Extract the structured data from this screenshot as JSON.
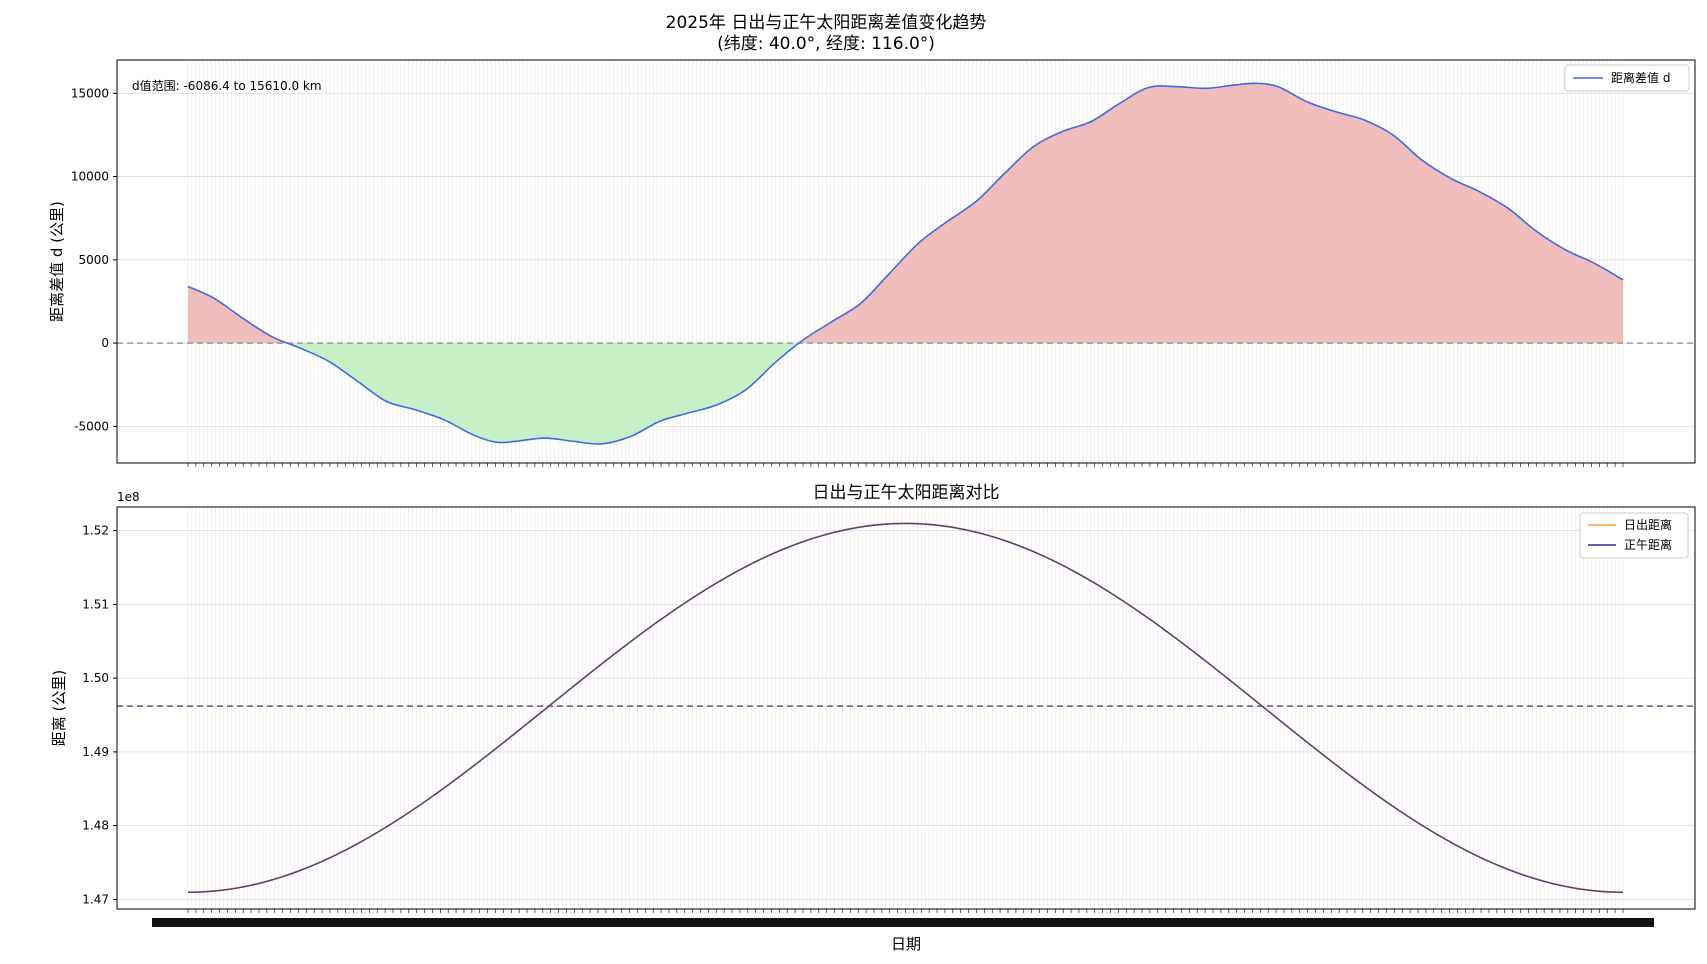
{
  "figure": {
    "title_line1": "2025年 日出与正午太阳距离差值变化趋势",
    "title_line2": "(纬度: 40.0°, 经度: 116.0°)",
    "xlabel": "日期",
    "x_tick_label_note": "2025-01-01 ... 2025-12-31"
  },
  "chart_data": [
    {
      "type": "area",
      "title": "",
      "ylabel": "距离差值 d (公里)",
      "ylim": [
        -7200,
        17000
      ],
      "yticks": [
        -5000,
        0,
        5000,
        10000,
        15000
      ],
      "grid": true,
      "legend_position": "top-right",
      "annotation": "d值范围: -6086.4 to 15610.0 km",
      "reference_line": 0,
      "x_domain_days": [
        1,
        365
      ],
      "x_start": "2025-01-01",
      "x_end": "2025-12-31",
      "colors": {
        "line": "#4169e1",
        "positive_fill": "#f0bcbc",
        "negative_fill": "#c6f0c6",
        "reference": "#999999"
      },
      "series": [
        {
          "name": "距离差值 d",
          "points": [
            [
              1,
              3400
            ],
            [
              10,
              2700
            ],
            [
              20,
              1500
            ],
            [
              30,
              400
            ],
            [
              40,
              -300
            ],
            [
              50,
              -1100
            ],
            [
              60,
              -2300
            ],
            [
              70,
              -3500
            ],
            [
              80,
              -4000
            ],
            [
              90,
              -4600
            ],
            [
              100,
              -5500
            ],
            [
              108,
              -5950
            ],
            [
              115,
              -5900
            ],
            [
              125,
              -5700
            ],
            [
              135,
              -5900
            ],
            [
              145,
              -6050
            ],
            [
              155,
              -5600
            ],
            [
              165,
              -4700
            ],
            [
              175,
              -4200
            ],
            [
              185,
              -3700
            ],
            [
              195,
              -2800
            ],
            [
              205,
              -1200
            ],
            [
              215,
              200
            ],
            [
              225,
              1300
            ],
            [
              235,
              2400
            ],
            [
              245,
              4200
            ],
            [
              255,
              6000
            ],
            [
              265,
              7300
            ],
            [
              275,
              8500
            ],
            [
              285,
              10200
            ],
            [
              295,
              11800
            ],
            [
              305,
              12700
            ],
            [
              315,
              13300
            ],
            [
              325,
              14400
            ],
            [
              335,
              15350
            ],
            [
              345,
              15400
            ],
            [
              355,
              15300
            ],
            [
              365,
              15500
            ],
            [
              372,
              15600
            ],
            [
              380,
              15400
            ],
            [
              390,
              14500
            ],
            [
              400,
              13900
            ],
            [
              410,
              13400
            ],
            [
              420,
              12500
            ],
            [
              430,
              11000
            ],
            [
              440,
              9900
            ],
            [
              450,
              9100
            ],
            [
              460,
              8100
            ],
            [
              470,
              6700
            ],
            [
              480,
              5600
            ],
            [
              490,
              4800
            ],
            [
              500,
              3800
            ]
          ]
        }
      ]
    },
    {
      "type": "line",
      "title": "日出与正午太阳距离对比",
      "ylabel": "距离 (公里)",
      "y_offset_label": "1e8",
      "ylim": [
        1.4687,
        1.5232
      ],
      "yticks": [
        "1.47",
        "1.48",
        "1.49",
        "1.50",
        "1.51",
        "1.52"
      ],
      "ytick_values": [
        1.47,
        1.48,
        1.49,
        1.5,
        1.51,
        1.52
      ],
      "grid": true,
      "legend_position": "top-right",
      "mean_line": 1.4962,
      "x_start": "2025-01-01",
      "x_end": "2025-12-31",
      "colors": {
        "sunrise": "#ff9f3a",
        "noon": "#2b2b8f",
        "mean": "#6b4d7a"
      },
      "series": [
        {
          "name": "日出距离",
          "min": 1.471,
          "max": 1.521,
          "peak_day": 185
        },
        {
          "name": "正午距离",
          "min": 1.471,
          "max": 1.521,
          "peak_day": 185
        }
      ]
    }
  ]
}
